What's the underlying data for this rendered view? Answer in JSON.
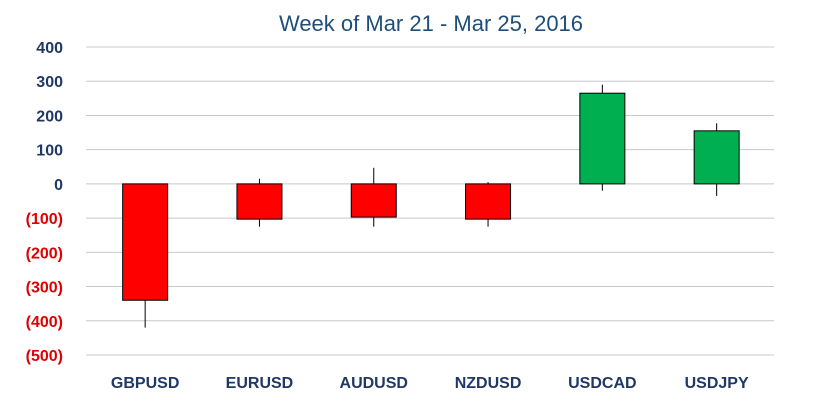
{
  "chart_data": {
    "type": "candlestick",
    "title": "Week of Mar 21 - Mar 25, 2016",
    "xlabel": "",
    "ylabel": "",
    "ylim": [
      -500,
      400
    ],
    "grid": true,
    "legend": "none",
    "categories": [
      "GBPUSD",
      "EURUSD",
      "AUDUSD",
      "NZDUSD",
      "USDCAD",
      "USDJPY"
    ],
    "y_ticks": [
      {
        "value": 400,
        "label": "400"
      },
      {
        "value": 300,
        "label": "300"
      },
      {
        "value": 200,
        "label": "200"
      },
      {
        "value": 100,
        "label": "100"
      },
      {
        "value": 0,
        "label": "0"
      },
      {
        "value": -100,
        "label": "(100)"
      },
      {
        "value": -200,
        "label": "(200)"
      },
      {
        "value": -300,
        "label": "(300)"
      },
      {
        "value": -400,
        "label": "(400)"
      },
      {
        "value": -500,
        "label": "(500)"
      }
    ],
    "candles": [
      {
        "category": "GBPUSD",
        "open": 0,
        "close": -340,
        "high": 0,
        "low": -420
      },
      {
        "category": "EURUSD",
        "open": 0,
        "close": -103,
        "high": 15,
        "low": -125
      },
      {
        "category": "AUDUSD",
        "open": 0,
        "close": -97,
        "high": 47,
        "low": -125
      },
      {
        "category": "NZDUSD",
        "open": 0,
        "close": -103,
        "high": 5,
        "low": -125
      },
      {
        "category": "USDCAD",
        "open": 0,
        "close": 265,
        "high": 290,
        "low": -20
      },
      {
        "category": "USDJPY",
        "open": 0,
        "close": 155,
        "high": 177,
        "low": -35
      }
    ],
    "colors": {
      "up": "#00b050",
      "down": "#ff0000",
      "positive_tick": "#1f3864",
      "negative_tick": "#e00000",
      "title": "#1f4e79"
    }
  }
}
